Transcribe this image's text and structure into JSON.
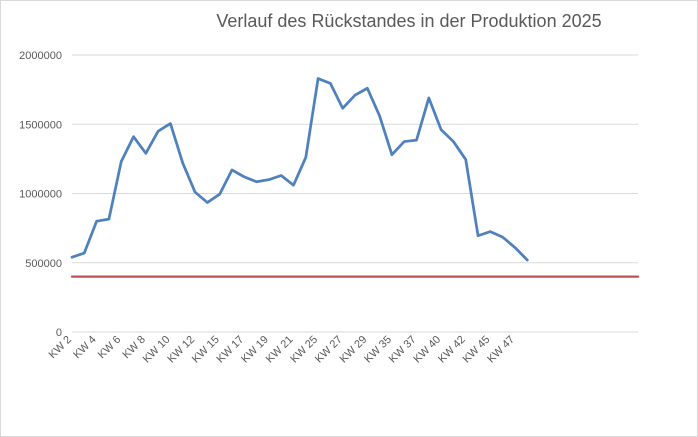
{
  "chart_data": {
    "type": "line",
    "title": "Verlauf des Rückstandes in der Produktion 2025",
    "xlabel": "",
    "ylabel": "",
    "ylim": [
      0,
      2000000
    ],
    "yticks": [
      0,
      500000,
      1000000,
      1500000,
      2000000
    ],
    "grid": true,
    "x_tick_labels": [
      "KW 2",
      "KW 4",
      "KW 6",
      "KW 8",
      "KW 10",
      "KW 12",
      "KW 15",
      "KW 17",
      "KW 19",
      "KW 21",
      "KW 25",
      "KW 27",
      "KW 29",
      "KW 35",
      "KW 37",
      "KW 40",
      "KW 42",
      "KW 45",
      "KW 47"
    ],
    "series": [
      {
        "color": "#4f81bd",
        "values": [
          540000,
          570000,
          800000,
          815000,
          1230000,
          1410000,
          1290000,
          1450000,
          1505000,
          1220000,
          1010000,
          935000,
          995000,
          1170000,
          1120000,
          1085000,
          1100000,
          1130000,
          1060000,
          1260000,
          1830000,
          1795000,
          1615000,
          1710000,
          1760000,
          1560000,
          1280000,
          1375000,
          1385000,
          1690000,
          1460000,
          1375000,
          1245000,
          695000,
          725000,
          685000,
          610000,
          520000
        ]
      },
      {
        "color": "#c0504d",
        "values": [
          400000,
          400000,
          400000,
          400000,
          400000,
          400000,
          400000,
          400000,
          400000,
          400000,
          400000,
          400000,
          400000,
          400000,
          400000,
          400000,
          400000,
          400000,
          400000,
          400000,
          400000,
          400000,
          400000,
          400000,
          400000,
          400000,
          400000,
          400000,
          400000,
          400000,
          400000,
          400000,
          400000,
          400000,
          400000,
          400000,
          400000,
          400000,
          400000,
          400000,
          400000,
          400000,
          400000,
          400000,
          400000,
          400000,
          400000
        ]
      }
    ]
  }
}
